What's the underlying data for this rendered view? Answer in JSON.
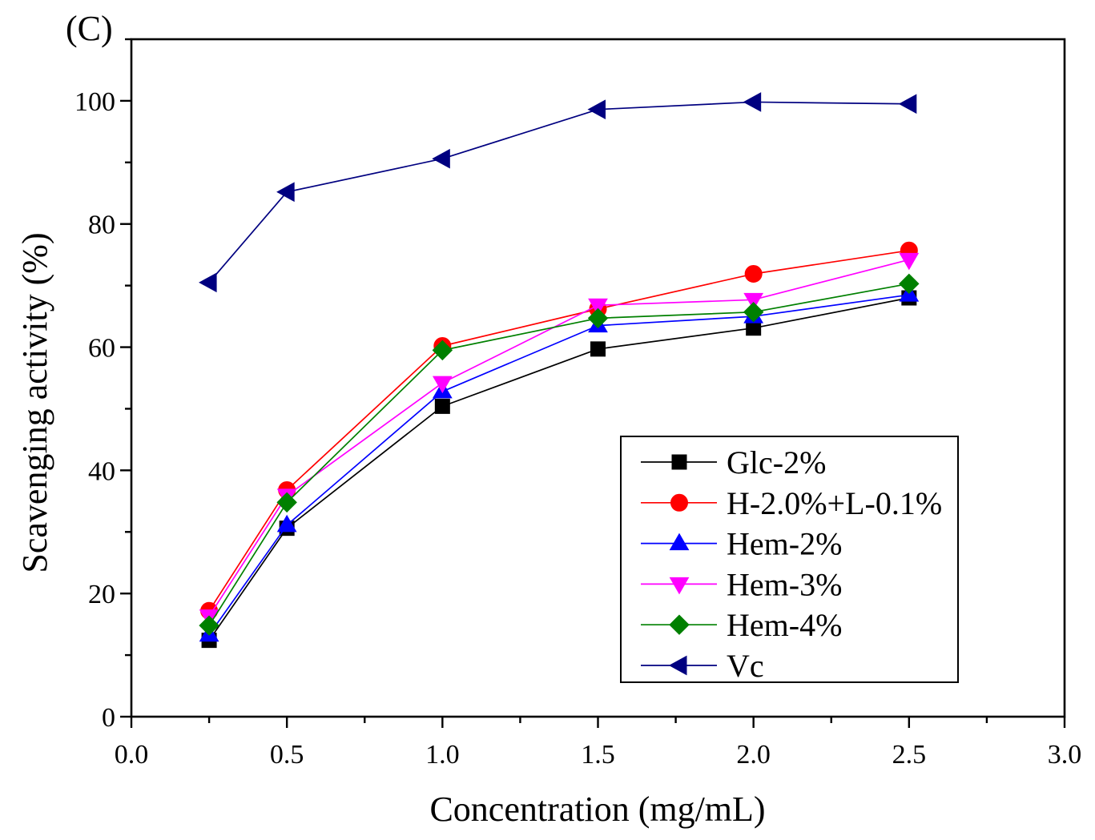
{
  "chart_data": {
    "type": "line",
    "panel_label": "(C)",
    "xlabel": "Concentration (mg/mL)",
    "ylabel": "Scavenging activity (%)",
    "xlim": [
      0,
      3
    ],
    "ylim": [
      0,
      110
    ],
    "xticks": [
      0,
      0.5,
      1,
      1.5,
      2,
      2.5,
      3
    ],
    "xtick_labels": [
      "0.0",
      "0.5",
      "1.0",
      "1.5",
      "2.0",
      "2.5",
      "3.0"
    ],
    "xminor_step": 0.25,
    "yticks": [
      0,
      20,
      40,
      60,
      80,
      100
    ],
    "ytick_labels": [
      "0",
      "20",
      "40",
      "60",
      "80",
      "100"
    ],
    "yminor_step": 10,
    "grid": false,
    "legend_position": "lower-right",
    "x": [
      0.25,
      0.5,
      1.0,
      1.5,
      2.0,
      2.5
    ],
    "series": [
      {
        "name": "Glc-2%",
        "color": "#000000",
        "marker": "square",
        "values": [
          12.4,
          30.6,
          50.4,
          59.7,
          63.1,
          68.0
        ]
      },
      {
        "name": "H-2.0%+L-0.1%",
        "color": "#FF0000",
        "marker": "circle",
        "values": [
          17.2,
          36.8,
          60.2,
          66.2,
          71.9,
          75.7
        ]
      },
      {
        "name": "Hem-2%",
        "color": "#0000FF",
        "marker": "triangle-up",
        "values": [
          13.3,
          31.1,
          52.8,
          63.5,
          65.0,
          68.5
        ]
      },
      {
        "name": "Hem-3%",
        "color": "#FF00FF",
        "marker": "triangle-down",
        "values": [
          16.3,
          35.9,
          54.2,
          66.8,
          67.7,
          74.2
        ]
      },
      {
        "name": "Hem-4%",
        "color": "#008000",
        "marker": "diamond",
        "values": [
          14.8,
          34.8,
          59.5,
          64.7,
          65.7,
          70.3
        ]
      },
      {
        "name": "Vc",
        "color": "#000080",
        "marker": "triangle-left",
        "values": [
          70.5,
          85.2,
          90.6,
          98.6,
          99.8,
          99.5
        ]
      }
    ]
  }
}
